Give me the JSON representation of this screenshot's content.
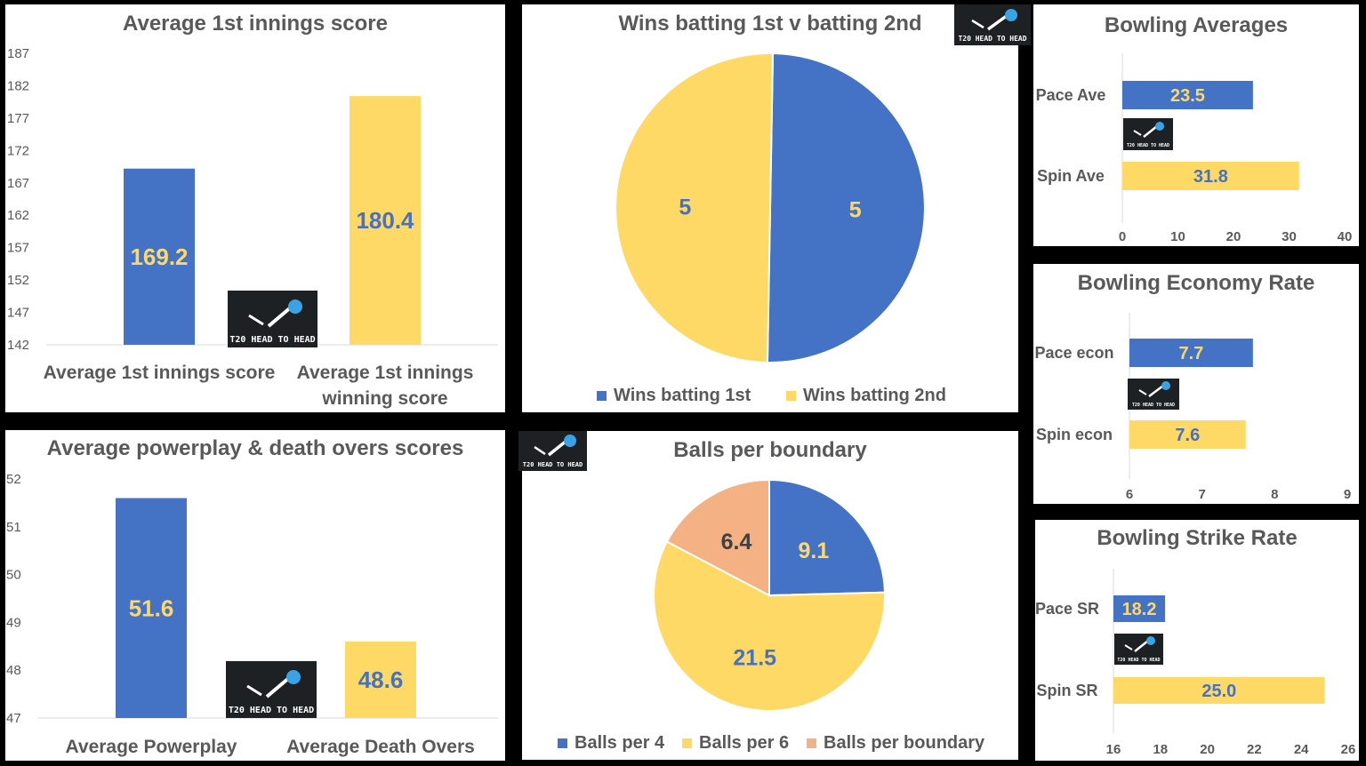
{
  "colors": {
    "blue": "#4472c4",
    "yellow": "#ffd966",
    "orange": "#f4b183",
    "text": "#595959"
  },
  "logo": {
    "text": "T20 HEAD TO HEAD",
    "icon": "cricket-ball-icon"
  },
  "chart_data": [
    {
      "id": "first-innings",
      "type": "bar",
      "title": "Average 1st innings score",
      "categories": [
        "Average 1st innings score",
        "Average 1st innings winning score"
      ],
      "category_lines": [
        [
          "Average 1st innings score"
        ],
        [
          "Average 1st innings",
          "winning score"
        ]
      ],
      "values": [
        169.2,
        180.4
      ],
      "value_labels": [
        "169.2",
        "180.4"
      ],
      "ylim": [
        142,
        187
      ],
      "yticks": [
        142,
        147,
        152,
        157,
        162,
        167,
        172,
        177,
        182,
        187
      ],
      "bar_colors": [
        "#4472c4",
        "#ffd966"
      ],
      "label_colors": [
        "#ffd966",
        "#4472c4"
      ]
    },
    {
      "id": "wins-pie",
      "type": "pie",
      "title": "Wins batting 1st v batting 2nd",
      "labels": [
        "Wins batting 1st",
        "Wins batting 2nd"
      ],
      "values": [
        5,
        5
      ],
      "value_labels": [
        "5",
        "5"
      ],
      "slice_colors": [
        "#4472c4",
        "#ffd966"
      ],
      "label_colors": [
        "#ffd966",
        "#4472c4"
      ],
      "legend": "bottom"
    },
    {
      "id": "bowling-averages",
      "type": "bar",
      "orientation": "horizontal",
      "title": "Bowling Averages",
      "categories": [
        "Pace Ave",
        "Spin Ave"
      ],
      "values": [
        23.5,
        31.8
      ],
      "value_labels": [
        "23.5",
        "31.8"
      ],
      "xlim": [
        0,
        40
      ],
      "xticks": [
        0,
        10,
        20,
        30,
        40
      ],
      "bar_colors": [
        "#4472c4",
        "#ffd966"
      ],
      "label_colors": [
        "#ffd966",
        "#4472c4"
      ]
    },
    {
      "id": "economy",
      "type": "bar",
      "orientation": "horizontal",
      "title": "Bowling Economy Rate",
      "categories": [
        "Pace econ",
        "Spin econ"
      ],
      "values": [
        7.7,
        7.6
      ],
      "value_labels": [
        "7.7",
        "7.6"
      ],
      "xlim": [
        6,
        9
      ],
      "xticks": [
        6,
        7,
        8,
        9
      ],
      "bar_colors": [
        "#4472c4",
        "#ffd966"
      ],
      "label_colors": [
        "#ffd966",
        "#4472c4"
      ]
    },
    {
      "id": "powerplay",
      "type": "bar",
      "title": "Average powerplay & death overs scores",
      "categories": [
        "Average Powerplay",
        "Average Death Overs"
      ],
      "category_lines": [
        [
          "Average Powerplay"
        ],
        [
          "Average Death Overs"
        ]
      ],
      "values": [
        51.6,
        48.6
      ],
      "value_labels": [
        "51.6",
        "48.6"
      ],
      "ylim": [
        47,
        52
      ],
      "yticks": [
        47,
        48,
        49,
        50,
        51,
        52
      ],
      "bar_colors": [
        "#4472c4",
        "#ffd966"
      ],
      "label_colors": [
        "#ffd966",
        "#4472c4"
      ]
    },
    {
      "id": "boundary-pie",
      "type": "pie",
      "title": "Balls per boundary",
      "labels": [
        "Balls per 4",
        "Balls per 6",
        "Balls per boundary"
      ],
      "values": [
        9.1,
        21.5,
        6.4
      ],
      "value_labels": [
        "9.1",
        "21.5",
        "6.4"
      ],
      "slice_colors": [
        "#4472c4",
        "#ffd966",
        "#f4b183"
      ],
      "label_colors": [
        "#ffd966",
        "#4472c4",
        "#404040"
      ],
      "legend": "bottom"
    },
    {
      "id": "strike-rate",
      "type": "bar",
      "orientation": "horizontal",
      "title": "Bowling Strike Rate",
      "categories": [
        "Pace SR",
        "Spin SR"
      ],
      "values": [
        18.2,
        25.0
      ],
      "value_labels": [
        "18.2",
        "25.0"
      ],
      "xlim": [
        16,
        26
      ],
      "xticks": [
        16,
        18,
        20,
        22,
        24,
        26
      ],
      "bar_colors": [
        "#4472c4",
        "#ffd966"
      ],
      "label_colors": [
        "#ffd966",
        "#4472c4"
      ]
    }
  ]
}
